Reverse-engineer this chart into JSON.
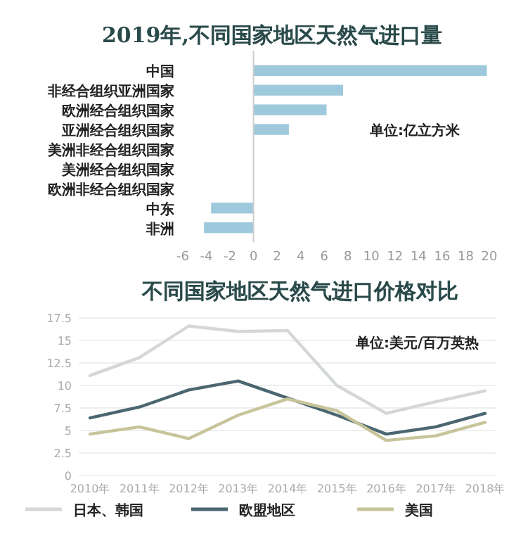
{
  "chart_data": [
    {
      "type": "bar",
      "orientation": "horizontal",
      "title": "2019年,不同国家地区天然气进口量",
      "categories": [
        "中国",
        "非经合组织亚洲国家",
        "欧洲经合组织国家",
        "亚洲经合组织国家",
        "美洲非经合组织国家",
        "美洲经合组织国家",
        "欧洲非经合组织国家",
        "中东",
        "非洲"
      ],
      "values": [
        19.8,
        7.6,
        6.2,
        3.0,
        0,
        0,
        0,
        -3.6,
        -4.2
      ],
      "color": "#9ec9dc",
      "xlim": [
        -6,
        20
      ],
      "xticks": [
        -6,
        -4,
        -2,
        0,
        2,
        4,
        6,
        8,
        10,
        12,
        14,
        16,
        18,
        20
      ],
      "annotations": [
        "单位:亿立方米"
      ]
    },
    {
      "type": "line",
      "title": "不同国家地区天然气进口价格对比",
      "categories": [
        "2010年",
        "2011年",
        "2012年",
        "2013年",
        "2014年",
        "2015年",
        "2016年",
        "2017年",
        "2018年"
      ],
      "series": [
        {
          "name": "日本、韩国",
          "color": "#d4d8d4",
          "values": [
            11.1,
            13.1,
            16.6,
            16.0,
            16.1,
            10.0,
            6.9,
            8.2,
            9.4
          ]
        },
        {
          "name": "欧盟地区",
          "color": "#4a6670",
          "values": [
            6.4,
            7.6,
            9.5,
            10.5,
            8.6,
            6.7,
            4.6,
            5.4,
            6.9
          ]
        },
        {
          "name": "美国",
          "color": "#c8c49a",
          "values": [
            4.6,
            5.4,
            4.1,
            6.7,
            8.5,
            7.2,
            3.9,
            4.4,
            5.9
          ]
        }
      ],
      "ylim": [
        0,
        17.5
      ],
      "yticks": [
        0,
        2.5,
        5,
        7.5,
        10,
        12.5,
        15,
        17.5
      ],
      "grid": "y",
      "legend": "bottom",
      "marker": "none",
      "line_style": "solid",
      "annotations": [
        "单位:美元/百万英热"
      ]
    }
  ]
}
